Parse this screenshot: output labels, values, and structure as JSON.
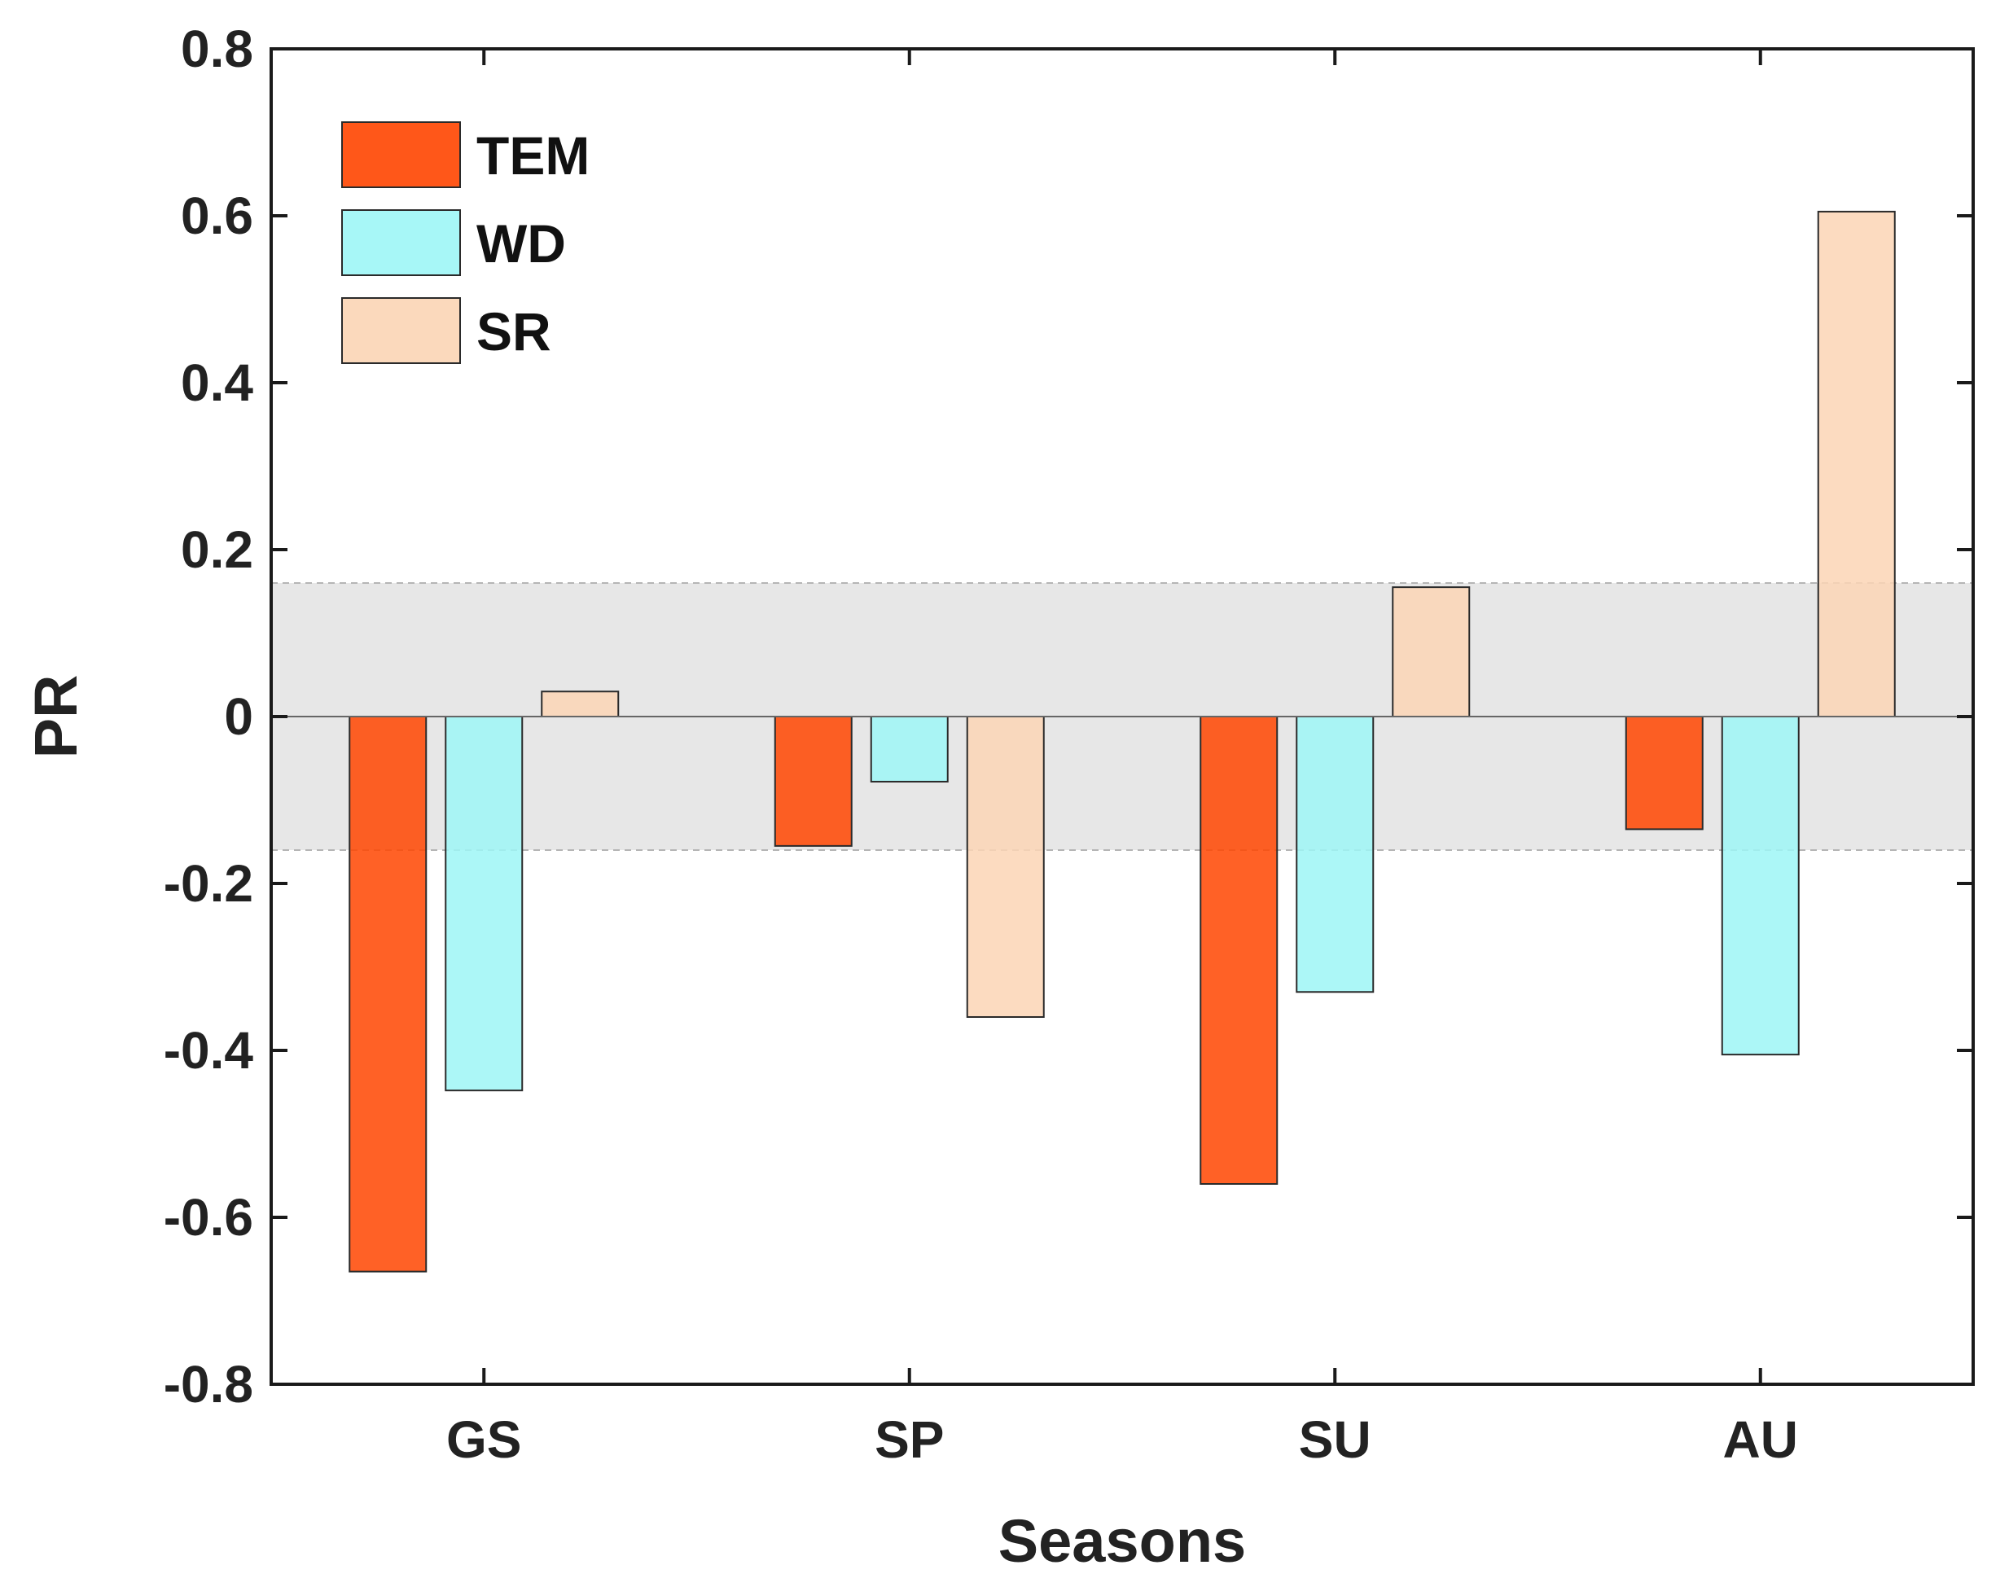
{
  "chart_data": {
    "type": "bar",
    "title": "",
    "xlabel": "Seasons",
    "ylabel": "PR",
    "categories": [
      "GS",
      "SP",
      "SU",
      "AU"
    ],
    "ylim": [
      -0.8,
      0.8
    ],
    "yticks": [
      "0.8",
      "0.6",
      "0.4",
      "0.2",
      "0",
      "-0.2",
      "-0.4",
      "-0.6",
      "-0.8"
    ],
    "ytick_values": [
      0.8,
      0.6,
      0.4,
      0.2,
      0,
      -0.2,
      -0.4,
      -0.6,
      -0.8
    ],
    "series": [
      {
        "name": "TEM",
        "color": "#FF4500",
        "values": [
          -0.665,
          -0.155,
          -0.56,
          -0.135
        ]
      },
      {
        "name": "WD",
        "color": "#9DF6F6",
        "values": [
          -0.448,
          -0.078,
          -0.33,
          -0.405
        ]
      },
      {
        "name": "SR",
        "color": "#FBD5B5",
        "values": [
          0.03,
          -0.36,
          0.155,
          0.605
        ]
      }
    ],
    "significance_band": {
      "lower": -0.16,
      "upper": 0.16,
      "color": "#D3D3D3"
    },
    "legend_position": "top-left",
    "grid": false
  }
}
